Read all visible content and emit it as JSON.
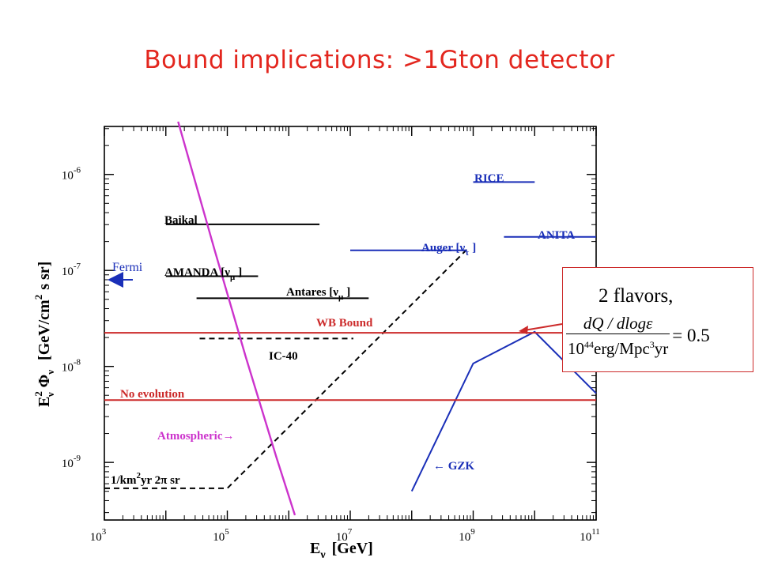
{
  "slide_title": "Bound implications: >1Gton detector",
  "fermi_label": "Fermi",
  "inset": {
    "flavors": "2 flavors,",
    "numerator": "dQ / dlogε",
    "denominator_prefix": "10",
    "denominator_exp": "44",
    "denominator_suffix": "erg/Mpc",
    "denominator_exp2": "3",
    "denominator_tail": "yr",
    "equals": "= 0.5"
  },
  "colors": {
    "title": "#e3261e",
    "red": "#cc2a2a",
    "blue": "#1a2fb8",
    "magenta": "#cc33cc",
    "black": "#000000"
  },
  "chart_data": {
    "type": "line",
    "x_log": true,
    "y_log": true,
    "xlim_exp": [
      3,
      11
    ],
    "ylim_exp": [
      -9.6,
      -5.5
    ],
    "xlabel": "E",
    "xlabel_sub": "ν",
    "xlabel_unit": "[GeV]",
    "ylabel": "E",
    "ylabel_sup": "2",
    "ylabel_sub": "ν",
    "ylabel_phi": "Φ",
    "ylabel_unit": "[GeV/cm",
    "ylabel_unit_sup": "2",
    "ylabel_unit_tail": "s sr]",
    "x_ticks": [
      {
        "base": "10",
        "exp": "3",
        "v": 3
      },
      {
        "base": "10",
        "exp": "5",
        "v": 5
      },
      {
        "base": "10",
        "exp": "7",
        "v": 7
      },
      {
        "base": "10",
        "exp": "9",
        "v": 9
      },
      {
        "base": "10",
        "exp": "11",
        "v": 11
      }
    ],
    "y_ticks": [
      {
        "base": "10",
        "exp": "-6",
        "v": -6
      },
      {
        "base": "10",
        "exp": "-7",
        "v": -7
      },
      {
        "base": "10",
        "exp": "-8",
        "v": -8
      },
      {
        "base": "10",
        "exp": "-9",
        "v": -9
      }
    ],
    "series": [
      {
        "name": "Baikal",
        "color": "black",
        "dash": false,
        "points": [
          [
            4.0,
            -6.52
          ],
          [
            6.5,
            -6.52
          ]
        ]
      },
      {
        "name": "AMANDA [ν",
        "sub": "μ",
        "tail": "]",
        "color": "black",
        "dash": false,
        "points": [
          [
            4.0,
            -7.06
          ],
          [
            5.5,
            -7.06
          ]
        ]
      },
      {
        "name": "Antares [ν",
        "sub": "μ",
        "tail": "]",
        "color": "black",
        "dash": false,
        "points": [
          [
            4.5,
            -7.29
          ],
          [
            7.3,
            -7.29
          ]
        ]
      },
      {
        "name": "IC-40",
        "color": "black",
        "dash": true,
        "points": [
          [
            4.55,
            -7.71
          ],
          [
            7.05,
            -7.71
          ]
        ]
      },
      {
        "name": "1/km",
        "sup": "2",
        "tail": "yr 2π sr",
        "color": "black",
        "dash": true,
        "points": [
          [
            3.0,
            -9.27
          ],
          [
            5.0,
            -9.27
          ],
          [
            8.9,
            -6.78
          ]
        ]
      },
      {
        "name": "RICE",
        "color": "blue",
        "dash": false,
        "points": [
          [
            9.0,
            -6.08
          ],
          [
            10.0,
            -6.08
          ]
        ]
      },
      {
        "name": "ANITA",
        "color": "blue",
        "dash": false,
        "points": [
          [
            9.5,
            -6.65
          ],
          [
            11.0,
            -6.65
          ]
        ]
      },
      {
        "name": "Auger [ν",
        "sub": "τ",
        "tail": "]",
        "color": "blue",
        "dash": false,
        "points": [
          [
            7.0,
            -6.79
          ],
          [
            8.9,
            -6.79
          ]
        ]
      },
      {
        "name": "← GZK",
        "color": "blue",
        "dash": false,
        "points": [
          [
            8.0,
            -9.3
          ],
          [
            9.0,
            -7.97
          ],
          [
            10.0,
            -7.64
          ],
          [
            11.0,
            -8.28
          ]
        ]
      },
      {
        "name": "WB Bound",
        "color": "red",
        "dash": false,
        "points": [
          [
            3.0,
            -7.65
          ],
          [
            11.0,
            -7.65
          ]
        ]
      },
      {
        "name": "No evolution",
        "color": "red",
        "dash": false,
        "points": [
          [
            3.0,
            -8.35
          ],
          [
            11.0,
            -8.35
          ]
        ]
      },
      {
        "name": "Atmospheric→",
        "color": "magenta",
        "dash": false,
        "points": [
          [
            4.2,
            -5.45
          ],
          [
            4.8,
            -6.8
          ],
          [
            5.3,
            -7.9
          ],
          [
            5.8,
            -8.95
          ],
          [
            6.1,
            -9.55
          ]
        ]
      }
    ]
  }
}
